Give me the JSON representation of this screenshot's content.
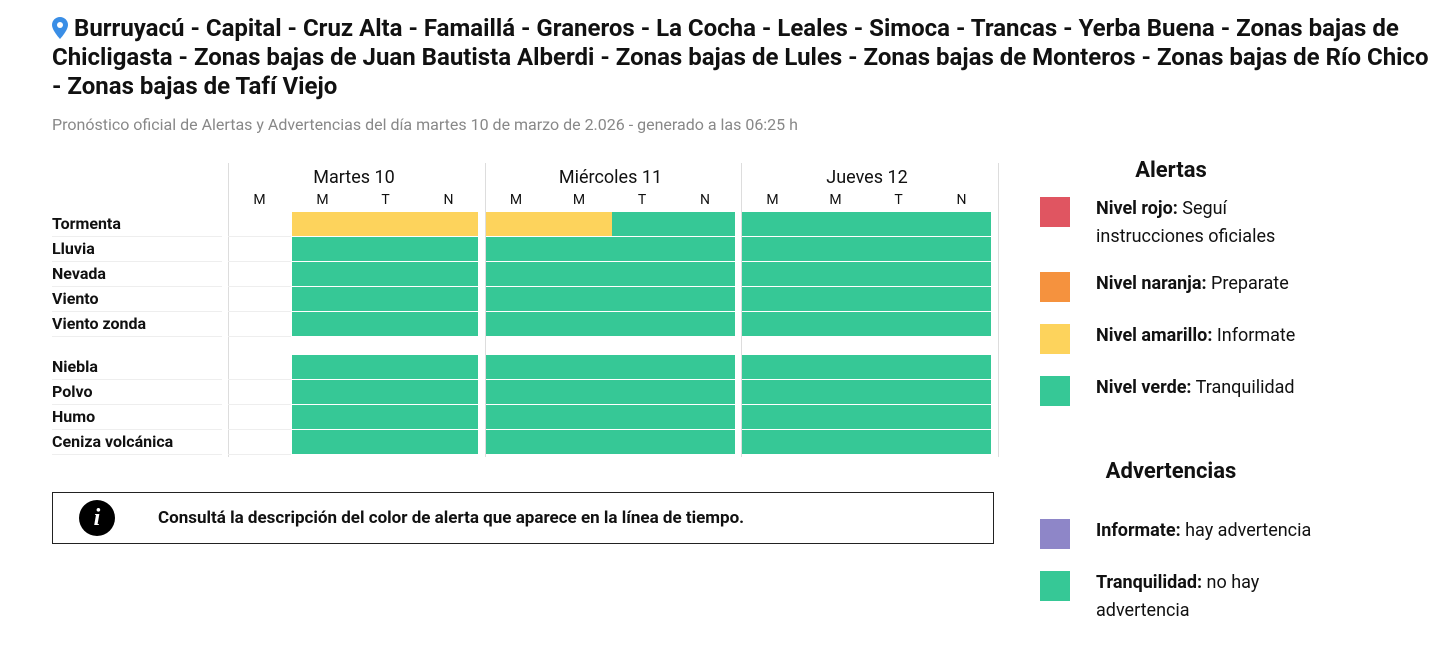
{
  "header": {
    "title": "Burruyacú - Capital - Cruz Alta - Famaillá - Graneros - La Cocha - Leales - Simoca - Trancas - Yerba Buena - Zonas bajas de Chicligasta - Zonas bajas de Juan Bautista Alberdi - Zonas bajas de Lules - Zonas bajas de Monteros - Zonas bajas de Río Chico - Zonas bajas de Tafí Viejo",
    "subtitle": "Pronóstico oficial de Alertas y Advertencias del día martes 10 de marzo de 2.026 - generado a las 06:25 h"
  },
  "table": {
    "days": [
      {
        "name": "Martes 10",
        "periods": [
          "M",
          "M",
          "T",
          "N"
        ]
      },
      {
        "name": "Miércoles 11",
        "periods": [
          "M",
          "M",
          "T",
          "N"
        ]
      },
      {
        "name": "Jueves 12",
        "periods": [
          "M",
          "M",
          "T",
          "N"
        ]
      }
    ],
    "groups": [
      {
        "rows": [
          {
            "label": "Tormenta",
            "cells": [
              null,
              "#fdd35c",
              "#fdd35c",
              "#fdd35c",
              "#fdd35c",
              "#fdd35c",
              "#36c896",
              "#36c896",
              "#36c896",
              "#36c896",
              "#36c896",
              "#36c896"
            ]
          },
          {
            "label": "Lluvia",
            "cells": [
              null,
              "#36c896",
              "#36c896",
              "#36c896",
              "#36c896",
              "#36c896",
              "#36c896",
              "#36c896",
              "#36c896",
              "#36c896",
              "#36c896",
              "#36c896"
            ]
          },
          {
            "label": "Nevada",
            "cells": [
              null,
              "#36c896",
              "#36c896",
              "#36c896",
              "#36c896",
              "#36c896",
              "#36c896",
              "#36c896",
              "#36c896",
              "#36c896",
              "#36c896",
              "#36c896"
            ]
          },
          {
            "label": "Viento",
            "cells": [
              null,
              "#36c896",
              "#36c896",
              "#36c896",
              "#36c896",
              "#36c896",
              "#36c896",
              "#36c896",
              "#36c896",
              "#36c896",
              "#36c896",
              "#36c896"
            ]
          },
          {
            "label": "Viento zonda",
            "cells": [
              null,
              "#36c896",
              "#36c896",
              "#36c896",
              "#36c896",
              "#36c896",
              "#36c896",
              "#36c896",
              "#36c896",
              "#36c896",
              "#36c896",
              "#36c896"
            ]
          }
        ]
      },
      {
        "rows": [
          {
            "label": "Niebla",
            "cells": [
              null,
              "#36c896",
              "#36c896",
              "#36c896",
              "#36c896",
              "#36c896",
              "#36c896",
              "#36c896",
              "#36c896",
              "#36c896",
              "#36c896",
              "#36c896"
            ]
          },
          {
            "label": "Polvo",
            "cells": [
              null,
              "#36c896",
              "#36c896",
              "#36c896",
              "#36c896",
              "#36c896",
              "#36c896",
              "#36c896",
              "#36c896",
              "#36c896",
              "#36c896",
              "#36c896"
            ]
          },
          {
            "label": "Humo",
            "cells": [
              null,
              "#36c896",
              "#36c896",
              "#36c896",
              "#36c896",
              "#36c896",
              "#36c896",
              "#36c896",
              "#36c896",
              "#36c896",
              "#36c896",
              "#36c896"
            ]
          },
          {
            "label": "Ceniza volcánica",
            "cells": [
              null,
              "#36c896",
              "#36c896",
              "#36c896",
              "#36c896",
              "#36c896",
              "#36c896",
              "#36c896",
              "#36c896",
              "#36c896",
              "#36c896",
              "#36c896"
            ]
          }
        ]
      }
    ]
  },
  "info": {
    "icon": "i",
    "text": "Consultá la descripción del color de alerta que aparece en la línea de tiempo."
  },
  "legend": [
    {
      "title": "Alertas",
      "items": [
        {
          "label": "Nivel rojo:",
          "text": "Seguí instrucciones oficiales",
          "color": "#e05561"
        },
        {
          "label": "Nivel naranja:",
          "text": "Preparate",
          "color": "#f5923e"
        },
        {
          "label": "Nivel amarillo:",
          "text": "Informate",
          "color": "#fdd35c"
        },
        {
          "label": "Nivel verde:",
          "text": "Tranquilidad",
          "color": "#36c896"
        }
      ]
    },
    {
      "title": "Advertencias",
      "items": [
        {
          "label": "Informate:",
          "text": "hay advertencia",
          "color": "#8e86c8"
        },
        {
          "label": "Tranquilidad:",
          "text": "no hay advertencia",
          "color": "#36c896"
        }
      ]
    }
  ]
}
